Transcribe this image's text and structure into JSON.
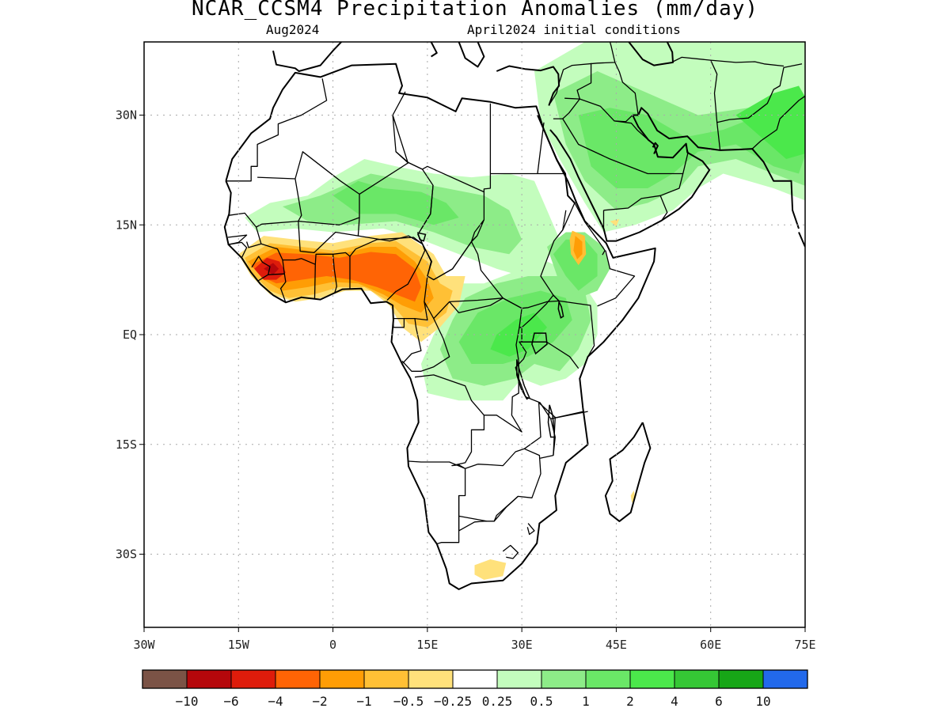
{
  "title": "NCAR_CCSM4 Precipitation Anomalies (mm/day)",
  "subtitle_left": "Aug2024",
  "subtitle_right": "April2024 initial conditions",
  "map": {
    "lon_range": [
      -30,
      75
    ],
    "lat_range": [
      -40,
      40
    ],
    "x_ticks": [
      {
        "lon": -30,
        "label": "30W"
      },
      {
        "lon": -15,
        "label": "15W"
      },
      {
        "lon": 0,
        "label": "0"
      },
      {
        "lon": 15,
        "label": "15E"
      },
      {
        "lon": 30,
        "label": "30E"
      },
      {
        "lon": 45,
        "label": "45E"
      },
      {
        "lon": 60,
        "label": "60E"
      },
      {
        "lon": 75,
        "label": "75E"
      }
    ],
    "y_ticks": [
      {
        "lat": 30,
        "label": "30N"
      },
      {
        "lat": 15,
        "label": "15N"
      },
      {
        "lat": 0,
        "label": "EQ"
      },
      {
        "lat": -15,
        "label": "15S"
      },
      {
        "lat": -30,
        "label": "30S"
      }
    ],
    "gridlines": true
  },
  "colorbar": {
    "colors": [
      "#7b5346",
      "#b5070b",
      "#de1c0b",
      "#ff6405",
      "#ff9d05",
      "#ffc035",
      "#ffe17b",
      "#ffffff",
      "#c3fdbd",
      "#8dec88",
      "#6ae767",
      "#4be84b",
      "#35c735",
      "#17a617",
      "#2269eb"
    ],
    "labels": [
      "-10",
      "-6",
      "-4",
      "-2",
      "-1",
      "-0.5",
      "-0.25",
      "0.25",
      "0.5",
      "1",
      "2",
      "4",
      "6",
      "10"
    ]
  }
}
